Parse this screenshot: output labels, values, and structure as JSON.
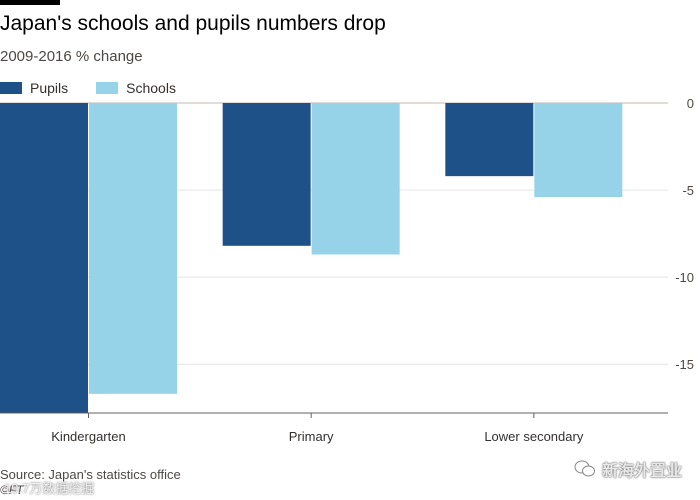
{
  "header": {
    "title": "Japan's schools and pupils numbers drop",
    "subtitle": "2009-2016 % change"
  },
  "chart_data": {
    "type": "bar",
    "categories": [
      "Kindergarten",
      "Primary",
      "Lower secondary"
    ],
    "series": [
      {
        "name": "Pupils",
        "color": "#1f5189",
        "values": [
          -17.8,
          -8.2,
          -4.2
        ]
      },
      {
        "name": "Schools",
        "color": "#96d3e8",
        "values": [
          -16.7,
          -8.7,
          -5.4
        ]
      }
    ],
    "ylim": [
      -17.8,
      0
    ],
    "yticks": [
      0,
      -5,
      -10,
      -15
    ],
    "ytick_labels": [
      "0",
      "-5",
      "-10",
      "-15"
    ],
    "axis_side": "right",
    "grid": true
  },
  "footer": {
    "source": "Source: Japan's statistics office",
    "credit": "©FT",
    "watermark": "新海外置业",
    "watermark2": "19.7万数据挖掘"
  }
}
